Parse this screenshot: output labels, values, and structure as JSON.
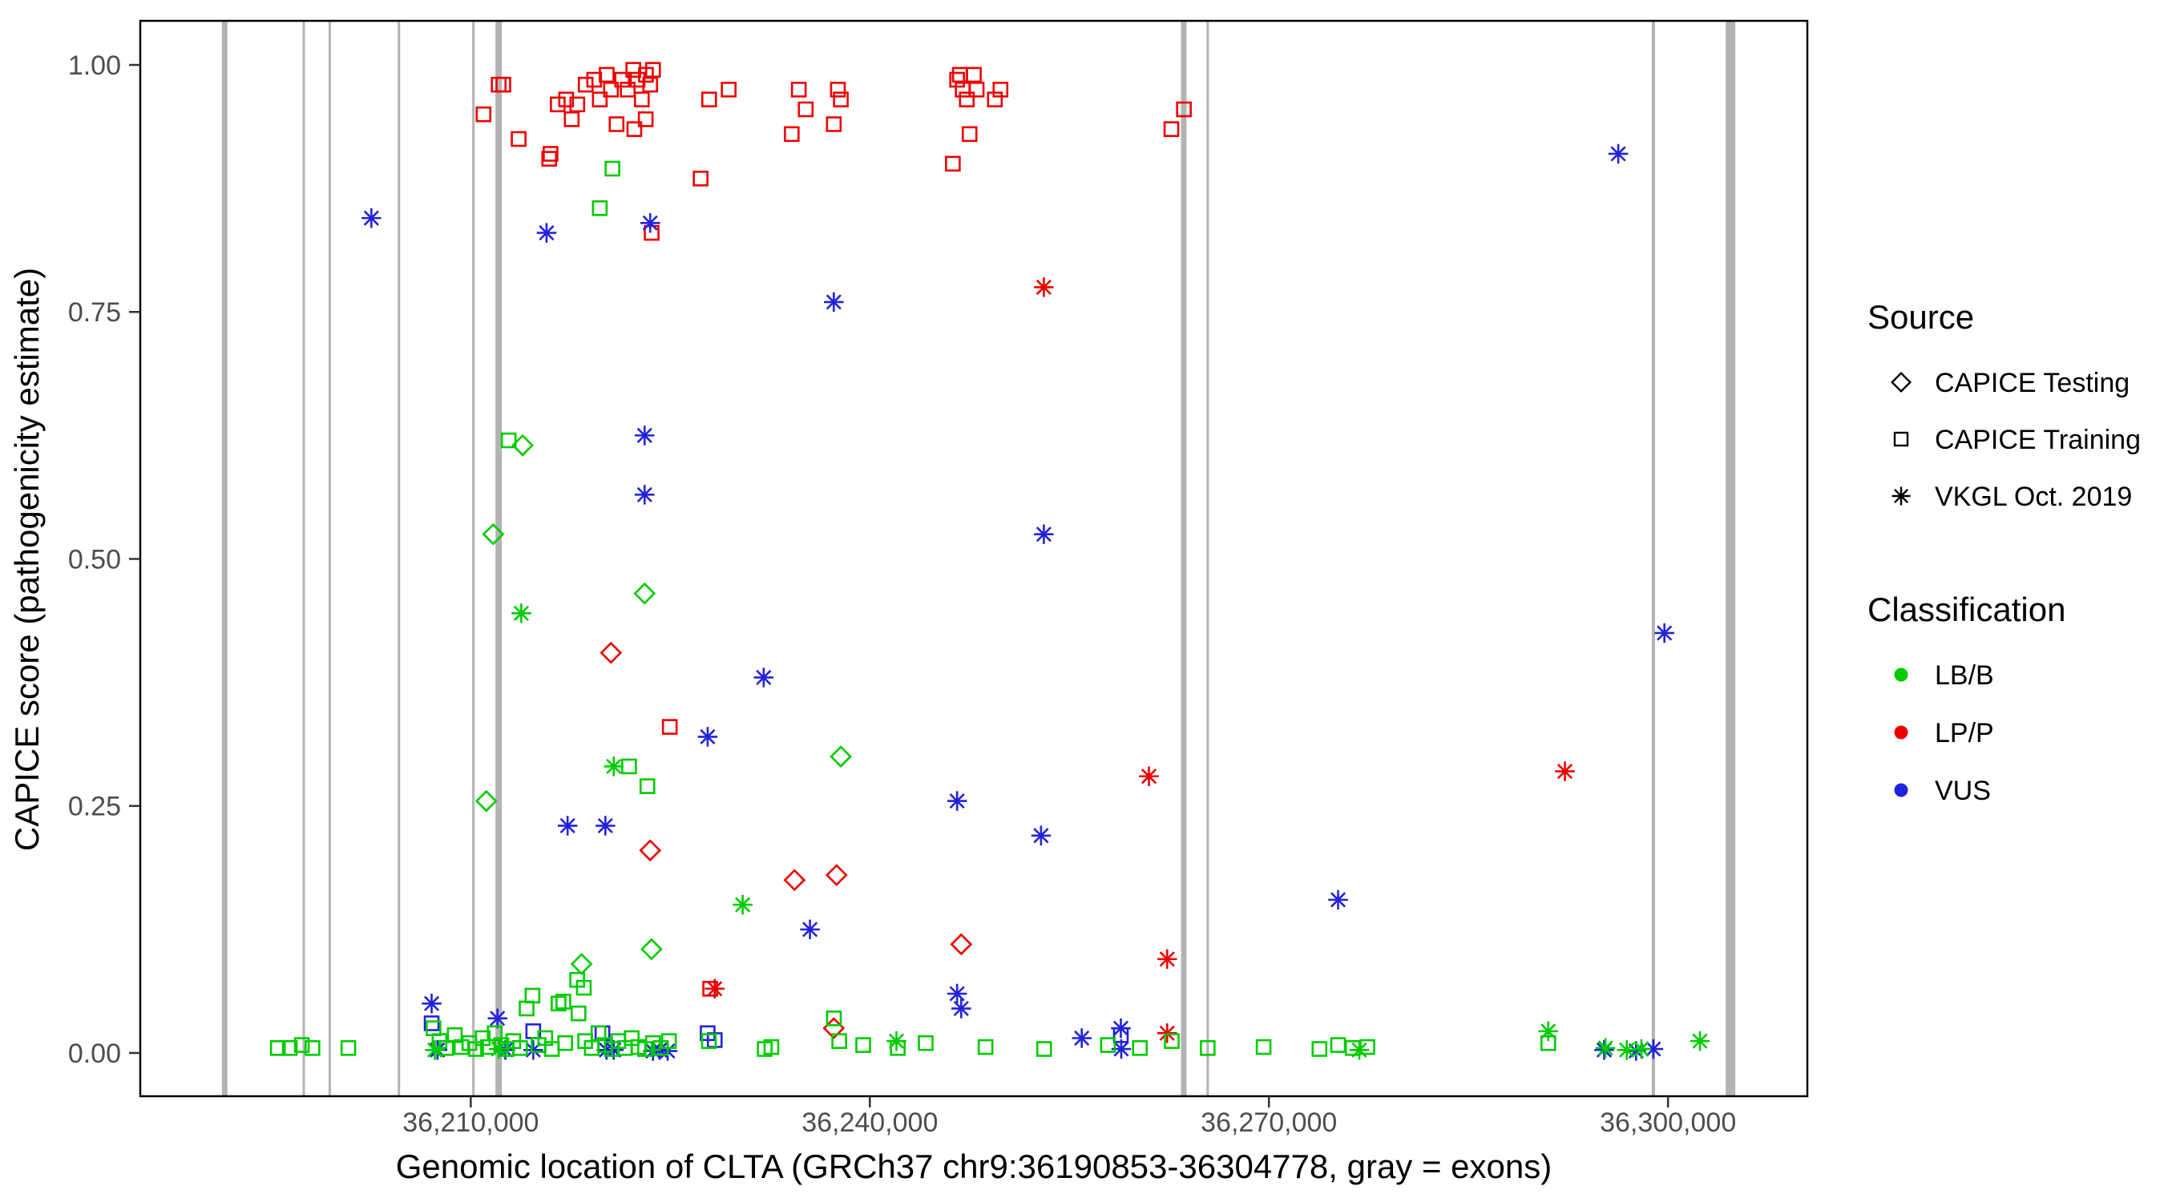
{
  "chart_data": {
    "type": "scatter",
    "title": "",
    "xlabel": "Genomic location of CLTA (GRCh37 chr9:36190853-36304778, gray = exons)",
    "ylabel": "CAPICE score (pathogenicity estimate)",
    "xlim": [
      36185157,
      36310474
    ],
    "ylim": [
      0,
      1
    ],
    "grid": "none",
    "legend_position": "right",
    "x_ticks": [
      {
        "value": 36210000,
        "label": "36,210,000"
      },
      {
        "value": 36240000,
        "label": "36,240,000"
      },
      {
        "value": 36270000,
        "label": "36,270,000"
      },
      {
        "value": 36300000,
        "label": "36,300,000"
      }
    ],
    "y_ticks": [
      {
        "value": 0.0,
        "label": "0.00"
      },
      {
        "value": 0.25,
        "label": "0.25"
      },
      {
        "value": 0.5,
        "label": "0.50"
      },
      {
        "value": 0.75,
        "label": "0.75"
      },
      {
        "value": 1.0,
        "label": "1.00"
      }
    ],
    "legend": {
      "source_title": "Source",
      "source_items": [
        {
          "label": "CAPICE Testing",
          "shape": "diamond"
        },
        {
          "label": "CAPICE Training",
          "shape": "square"
        },
        {
          "label": "VKGL Oct. 2019",
          "shape": "asterisk"
        }
      ],
      "classification_title": "Classification",
      "classification_items": [
        {
          "label": "LB/B",
          "color": "#00cc00"
        },
        {
          "label": "LP/P",
          "color": "#ee0000"
        },
        {
          "label": "VUS",
          "color": "#2222dd"
        }
      ]
    },
    "colors": {
      "B": "#00cc00",
      "P": "#ee0000",
      "U": "#2222dd"
    },
    "color_names": {
      "B": "LB/B",
      "P": "LP/P",
      "U": "VUS"
    },
    "shapes": {
      "T": "diamond",
      "R": "square",
      "V": "asterisk"
    },
    "source_names": {
      "T": "CAPICE Testing",
      "R": "CAPICE Training",
      "V": "VKGL Oct. 2019"
    },
    "exon_color": "#b3b3b3",
    "exons": [
      {
        "x": 36191500,
        "w": 7
      },
      {
        "x": 36197450,
        "w": 3
      },
      {
        "x": 36199400,
        "w": 3
      },
      {
        "x": 36204600,
        "w": 3
      },
      {
        "x": 36210200,
        "w": 3
      },
      {
        "x": 36212100,
        "w": 8
      },
      {
        "x": 36263600,
        "w": 7
      },
      {
        "x": 36265400,
        "w": 3
      },
      {
        "x": 36298900,
        "w": 4
      },
      {
        "x": 36304700,
        "w": 12
      }
    ],
    "point_format": [
      "genomic_position",
      "score",
      "source_code",
      "classification_code"
    ],
    "points": [
      [
        36210960,
        0.95,
        "R",
        "P"
      ],
      [
        36212100,
        0.98,
        "R",
        "P"
      ],
      [
        36212450,
        0.98,
        "R",
        "P"
      ],
      [
        36213600,
        0.925,
        "R",
        "P"
      ],
      [
        36215900,
        0.905,
        "R",
        "P"
      ],
      [
        36216000,
        0.91,
        "R",
        "P"
      ],
      [
        36216540,
        0.96,
        "R",
        "P"
      ],
      [
        36217170,
        0.965,
        "R",
        "P"
      ],
      [
        36217590,
        0.945,
        "R",
        "P"
      ],
      [
        36218010,
        0.96,
        "R",
        "P"
      ],
      [
        36218640,
        0.98,
        "R",
        "P"
      ],
      [
        36219280,
        0.985,
        "R",
        "P"
      ],
      [
        36219700,
        0.965,
        "R",
        "P"
      ],
      [
        36220220,
        0.99,
        "R",
        "P"
      ],
      [
        36220540,
        0.975,
        "R",
        "P"
      ],
      [
        36220960,
        0.94,
        "R",
        "P"
      ],
      [
        36221380,
        0.985,
        "R",
        "P"
      ],
      [
        36221800,
        0.975,
        "R",
        "P"
      ],
      [
        36222220,
        0.995,
        "R",
        "P"
      ],
      [
        36222540,
        0.985,
        "R",
        "P"
      ],
      [
        36222860,
        0.965,
        "R",
        "P"
      ],
      [
        36223170,
        0.99,
        "R",
        "P"
      ],
      [
        36223490,
        0.98,
        "R",
        "P"
      ],
      [
        36223700,
        0.995,
        "R",
        "P"
      ],
      [
        36222300,
        0.935,
        "R",
        "P"
      ],
      [
        36223150,
        0.945,
        "R",
        "P"
      ],
      [
        36223600,
        0.83,
        "R",
        "P"
      ],
      [
        36227280,
        0.885,
        "R",
        "P"
      ],
      [
        36227920,
        0.965,
        "R",
        "P"
      ],
      [
        36229390,
        0.975,
        "R",
        "P"
      ],
      [
        36234130,
        0.93,
        "R",
        "P"
      ],
      [
        36234660,
        0.975,
        "R",
        "P"
      ],
      [
        36235180,
        0.955,
        "R",
        "P"
      ],
      [
        36237290,
        0.94,
        "R",
        "P"
      ],
      [
        36237600,
        0.975,
        "R",
        "P"
      ],
      [
        36237820,
        0.965,
        "R",
        "P"
      ],
      [
        36246240,
        0.9,
        "R",
        "P"
      ],
      [
        36246560,
        0.985,
        "R",
        "P"
      ],
      [
        36246770,
        0.99,
        "R",
        "P"
      ],
      [
        36246980,
        0.975,
        "R",
        "P"
      ],
      [
        36247290,
        0.965,
        "R",
        "P"
      ],
      [
        36247500,
        0.93,
        "R",
        "P"
      ],
      [
        36247820,
        0.99,
        "R",
        "P"
      ],
      [
        36248030,
        0.975,
        "R",
        "P"
      ],
      [
        36249400,
        0.965,
        "R",
        "P"
      ],
      [
        36249820,
        0.975,
        "R",
        "P"
      ],
      [
        36262670,
        0.935,
        "R",
        "P"
      ],
      [
        36263610,
        0.955,
        "R",
        "P"
      ],
      [
        36224960,
        0.33,
        "R",
        "P"
      ],
      [
        36228000,
        0.065,
        "R",
        "P"
      ],
      [
        36220540,
        0.405,
        "T",
        "P"
      ],
      [
        36223490,
        0.205,
        "T",
        "P"
      ],
      [
        36234340,
        0.175,
        "T",
        "P"
      ],
      [
        36237500,
        0.18,
        "T",
        "P"
      ],
      [
        36246870,
        0.11,
        "T",
        "P"
      ],
      [
        36237290,
        0.025,
        "T",
        "P"
      ],
      [
        36253080,
        0.775,
        "V",
        "P"
      ],
      [
        36260980,
        0.28,
        "V",
        "P"
      ],
      [
        36262350,
        0.095,
        "V",
        "P"
      ],
      [
        36292250,
        0.285,
        "V",
        "P"
      ],
      [
        36228340,
        0.065,
        "V",
        "P"
      ],
      [
        36262350,
        0.02,
        "V",
        "P"
      ],
      [
        36202530,
        0.845,
        "V",
        "U"
      ],
      [
        36215700,
        0.83,
        "V",
        "U"
      ],
      [
        36223490,
        0.84,
        "V",
        "U"
      ],
      [
        36237290,
        0.76,
        "V",
        "U"
      ],
      [
        36223070,
        0.625,
        "V",
        "U"
      ],
      [
        36223070,
        0.565,
        "V",
        "U"
      ],
      [
        36253080,
        0.525,
        "V",
        "U"
      ],
      [
        36296260,
        0.91,
        "V",
        "U"
      ],
      [
        36299730,
        0.425,
        "V",
        "U"
      ],
      [
        36232020,
        0.38,
        "V",
        "U"
      ],
      [
        36227810,
        0.32,
        "V",
        "U"
      ],
      [
        36246560,
        0.255,
        "V",
        "U"
      ],
      [
        36252870,
        0.22,
        "V",
        "U"
      ],
      [
        36217280,
        0.23,
        "V",
        "U"
      ],
      [
        36220120,
        0.23,
        "V",
        "U"
      ],
      [
        36235500,
        0.125,
        "V",
        "U"
      ],
      [
        36275200,
        0.155,
        "V",
        "U"
      ],
      [
        36246560,
        0.06,
        "V",
        "U"
      ],
      [
        36246870,
        0.045,
        "V",
        "U"
      ],
      [
        36207060,
        0.05,
        "V",
        "U"
      ],
      [
        36212010,
        0.035,
        "V",
        "U"
      ],
      [
        36258870,
        0.025,
        "V",
        "U"
      ],
      [
        36255930,
        0.015,
        "V",
        "U"
      ],
      [
        36207500,
        0.003,
        "V",
        "U"
      ],
      [
        36212600,
        0.003,
        "V",
        "U"
      ],
      [
        36214700,
        0.003,
        "V",
        "U"
      ],
      [
        36220200,
        0.003,
        "V",
        "U"
      ],
      [
        36220750,
        0.003,
        "V",
        "U"
      ],
      [
        36223700,
        0.002,
        "V",
        "U"
      ],
      [
        36224200,
        0.003,
        "V",
        "U"
      ],
      [
        36224800,
        0.002,
        "V",
        "U"
      ],
      [
        36258900,
        0.004,
        "V",
        "U"
      ],
      [
        36295200,
        0.003,
        "V",
        "U"
      ],
      [
        36297600,
        0.002,
        "V",
        "U"
      ],
      [
        36298900,
        0.004,
        "V",
        "U"
      ],
      [
        36207060,
        0.03,
        "R",
        "U"
      ],
      [
        36214700,
        0.022,
        "R",
        "U"
      ],
      [
        36219900,
        0.02,
        "R",
        "U"
      ],
      [
        36227810,
        0.02,
        "R",
        "U"
      ],
      [
        36228340,
        0.013,
        "R",
        "U"
      ],
      [
        36258870,
        0.018,
        "R",
        "U"
      ],
      [
        36213900,
        0.615,
        "T",
        "B"
      ],
      [
        36211690,
        0.525,
        "T",
        "B"
      ],
      [
        36223070,
        0.465,
        "T",
        "B"
      ],
      [
        36211170,
        0.255,
        "T",
        "B"
      ],
      [
        36237820,
        0.3,
        "T",
        "B"
      ],
      [
        36223590,
        0.105,
        "T",
        "B"
      ],
      [
        36218330,
        0.09,
        "T",
        "B"
      ],
      [
        36220650,
        0.895,
        "R",
        "B"
      ],
      [
        36219700,
        0.855,
        "R",
        "B"
      ],
      [
        36212850,
        0.62,
        "R",
        "B"
      ],
      [
        36221900,
        0.29,
        "R",
        "B"
      ],
      [
        36223280,
        0.27,
        "R",
        "B"
      ],
      [
        36214640,
        0.058,
        "R",
        "B"
      ],
      [
        36216960,
        0.052,
        "R",
        "B"
      ],
      [
        36218000,
        0.074,
        "R",
        "B"
      ],
      [
        36218500,
        0.066,
        "R",
        "B"
      ],
      [
        36195500,
        0.005,
        "R",
        "B"
      ],
      [
        36196400,
        0.005,
        "R",
        "B"
      ],
      [
        36197300,
        0.008,
        "R",
        "B"
      ],
      [
        36198100,
        0.005,
        "R",
        "B"
      ],
      [
        36200800,
        0.005,
        "R",
        "B"
      ],
      [
        36207200,
        0.025,
        "R",
        "B"
      ],
      [
        36207650,
        0.012,
        "R",
        "B"
      ],
      [
        36208150,
        0.005,
        "R",
        "B"
      ],
      [
        36208800,
        0.018,
        "R",
        "B"
      ],
      [
        36209300,
        0.006,
        "R",
        "B"
      ],
      [
        36209900,
        0.01,
        "R",
        "B"
      ],
      [
        36210400,
        0.004,
        "R",
        "B"
      ],
      [
        36210900,
        0.015,
        "R",
        "B"
      ],
      [
        36211300,
        0.006,
        "R",
        "B"
      ],
      [
        36211800,
        0.02,
        "R",
        "B"
      ],
      [
        36212300,
        0.008,
        "R",
        "B"
      ],
      [
        36212700,
        0.004,
        "R",
        "B"
      ],
      [
        36213200,
        0.012,
        "R",
        "B"
      ],
      [
        36213700,
        0.005,
        "R",
        "B"
      ],
      [
        36214200,
        0.045,
        "R",
        "B"
      ],
      [
        36215100,
        0.008,
        "R",
        "B"
      ],
      [
        36215600,
        0.015,
        "R",
        "B"
      ],
      [
        36216100,
        0.004,
        "R",
        "B"
      ],
      [
        36216600,
        0.05,
        "R",
        "B"
      ],
      [
        36217100,
        0.01,
        "R",
        "B"
      ],
      [
        36218100,
        0.04,
        "R",
        "B"
      ],
      [
        36218600,
        0.012,
        "R",
        "B"
      ],
      [
        36219100,
        0.005,
        "R",
        "B"
      ],
      [
        36219600,
        0.02,
        "R",
        "B"
      ],
      [
        36220100,
        0.008,
        "R",
        "B"
      ],
      [
        36220600,
        0.004,
        "R",
        "B"
      ],
      [
        36221100,
        0.012,
        "R",
        "B"
      ],
      [
        36221600,
        0.005,
        "R",
        "B"
      ],
      [
        36222100,
        0.015,
        "R",
        "B"
      ],
      [
        36222600,
        0.006,
        "R",
        "B"
      ],
      [
        36223100,
        0.004,
        "R",
        "B"
      ],
      [
        36223700,
        0.01,
        "R",
        "B"
      ],
      [
        36224300,
        0.005,
        "R",
        "B"
      ],
      [
        36224900,
        0.012,
        "R",
        "B"
      ],
      [
        36227900,
        0.012,
        "R",
        "B"
      ],
      [
        36232100,
        0.004,
        "R",
        "B"
      ],
      [
        36232600,
        0.006,
        "R",
        "B"
      ],
      [
        36237300,
        0.035,
        "R",
        "B"
      ],
      [
        36237700,
        0.012,
        "R",
        "B"
      ],
      [
        36239500,
        0.008,
        "R",
        "B"
      ],
      [
        36242100,
        0.005,
        "R",
        "B"
      ],
      [
        36244200,
        0.01,
        "R",
        "B"
      ],
      [
        36248700,
        0.006,
        "R",
        "B"
      ],
      [
        36253100,
        0.004,
        "R",
        "B"
      ],
      [
        36257900,
        0.008,
        "R",
        "B"
      ],
      [
        36260300,
        0.005,
        "R",
        "B"
      ],
      [
        36262700,
        0.012,
        "R",
        "B"
      ],
      [
        36265400,
        0.005,
        "R",
        "B"
      ],
      [
        36269600,
        0.006,
        "R",
        "B"
      ],
      [
        36273800,
        0.004,
        "R",
        "B"
      ],
      [
        36275200,
        0.008,
        "R",
        "B"
      ],
      [
        36276300,
        0.005,
        "R",
        "B"
      ],
      [
        36277400,
        0.006,
        "R",
        "B"
      ],
      [
        36291000,
        0.01,
        "R",
        "B"
      ],
      [
        36213800,
        0.445,
        "V",
        "B"
      ],
      [
        36220750,
        0.29,
        "V",
        "B"
      ],
      [
        36230440,
        0.15,
        "V",
        "B"
      ],
      [
        36291000,
        0.022,
        "V",
        "B"
      ],
      [
        36302400,
        0.012,
        "V",
        "B"
      ],
      [
        36207300,
        0.003,
        "V",
        "B"
      ],
      [
        36212100,
        0.004,
        "V",
        "B"
      ],
      [
        36242000,
        0.012,
        "V",
        "B"
      ],
      [
        36276800,
        0.003,
        "V",
        "B"
      ],
      [
        36295300,
        0.005,
        "V",
        "B"
      ],
      [
        36296900,
        0.003,
        "V",
        "B"
      ],
      [
        36298000,
        0.004,
        "V",
        "B"
      ]
    ]
  }
}
